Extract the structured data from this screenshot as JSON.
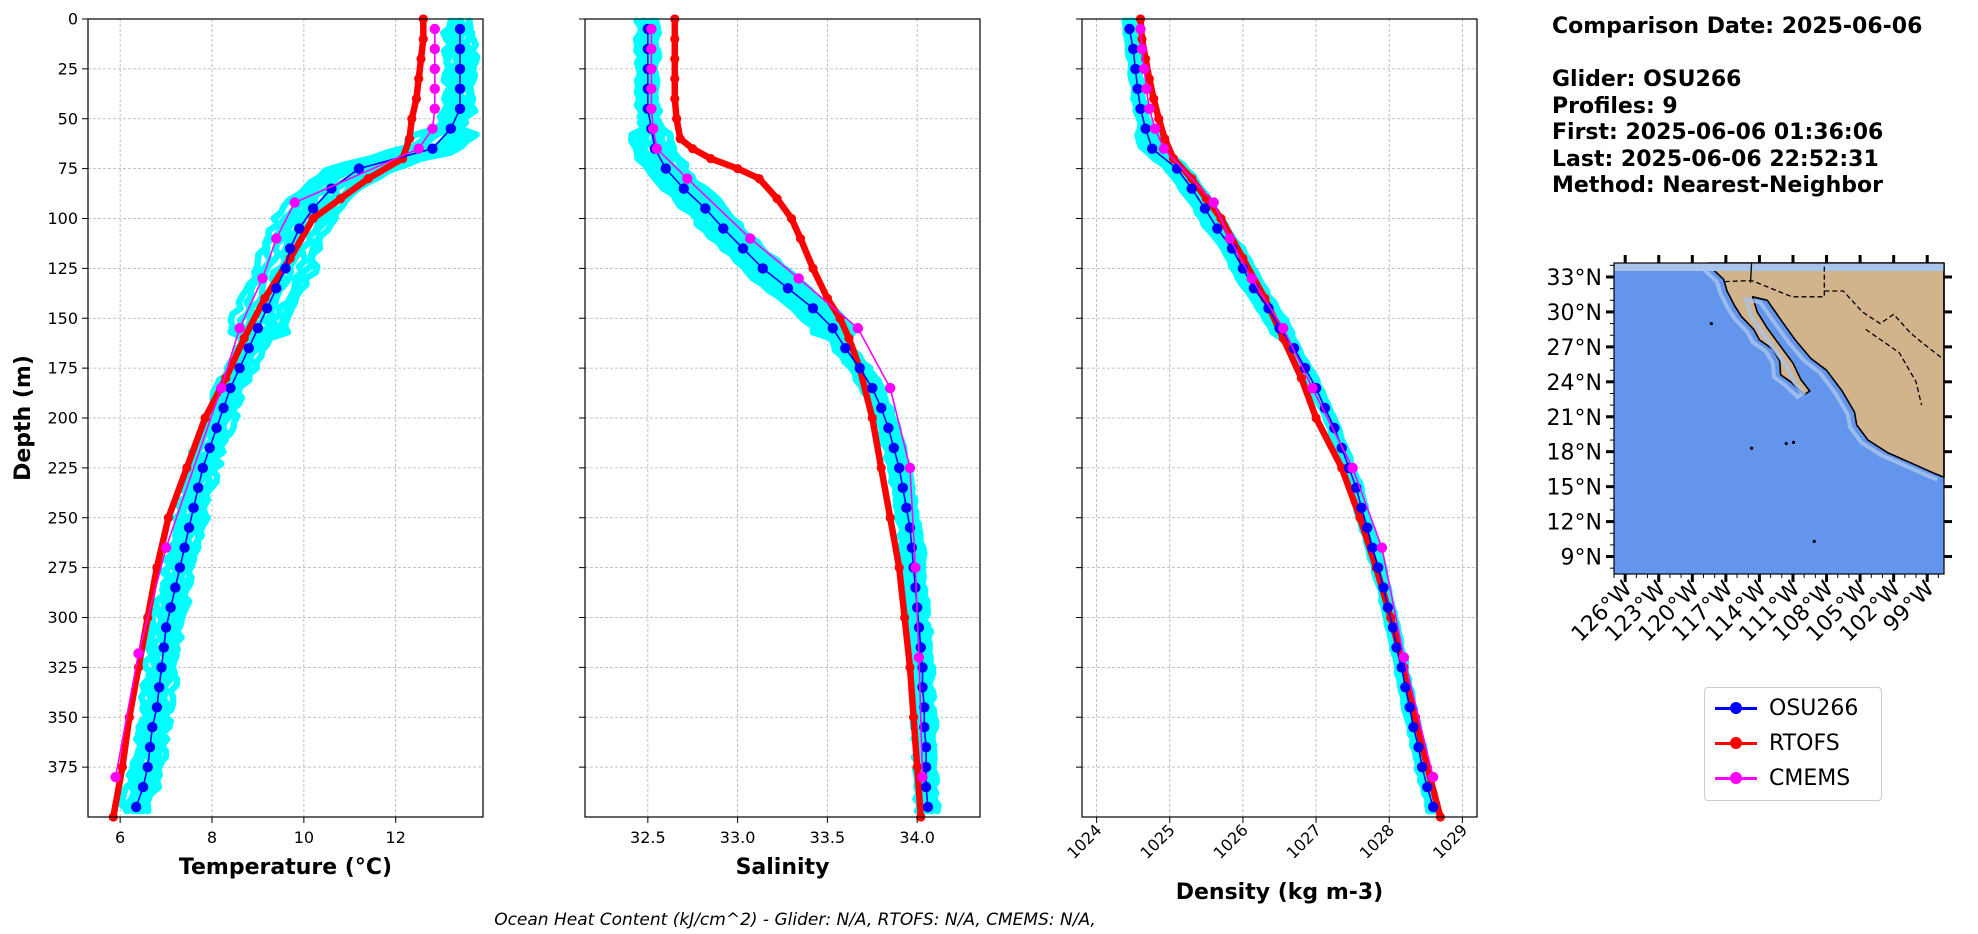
{
  "chart_data": [
    {
      "type": "line",
      "xlabel": "Temperature (°C)",
      "ylabel": "Depth (m)",
      "xlim": [
        5.3,
        13.9
      ],
      "ylim": [
        400,
        0
      ],
      "xticks": [
        "6",
        "8",
        "10",
        "12"
      ],
      "yticks": [
        "0",
        "25",
        "50",
        "75",
        "100",
        "125",
        "150",
        "175",
        "200",
        "225",
        "250",
        "275",
        "300",
        "325",
        "350",
        "375"
      ],
      "grid": true,
      "series": [
        {
          "name": "OSU266",
          "color": "#0000ff",
          "depth": [
            5,
            15,
            25,
            35,
            45,
            55,
            65,
            75,
            85,
            95,
            105,
            115,
            125,
            135,
            145,
            155,
            165,
            175,
            185,
            195,
            205,
            215,
            225,
            235,
            245,
            255,
            265,
            275,
            285,
            295,
            305,
            315,
            325,
            335,
            345,
            355,
            365,
            375,
            385,
            395
          ],
          "values": [
            13.4,
            13.4,
            13.4,
            13.4,
            13.4,
            13.2,
            12.8,
            11.2,
            10.6,
            10.2,
            9.9,
            9.7,
            9.6,
            9.4,
            9.2,
            9.0,
            8.8,
            8.6,
            8.4,
            8.25,
            8.1,
            7.95,
            7.8,
            7.7,
            7.6,
            7.5,
            7.4,
            7.3,
            7.2,
            7.1,
            7.0,
            6.95,
            6.9,
            6.85,
            6.8,
            6.7,
            6.65,
            6.6,
            6.5,
            6.35
          ]
        },
        {
          "name": "RTOFS",
          "color": "#ff0000",
          "depth": [
            0,
            10,
            20,
            30,
            40,
            50,
            60,
            70,
            80,
            90,
            100,
            120,
            140,
            160,
            180,
            200,
            225,
            250,
            275,
            300,
            325,
            350,
            375,
            400
          ],
          "values": [
            12.6,
            12.6,
            12.55,
            12.5,
            12.45,
            12.35,
            12.3,
            12.15,
            11.4,
            10.8,
            10.2,
            9.7,
            9.15,
            8.7,
            8.3,
            7.85,
            7.45,
            7.05,
            6.8,
            6.6,
            6.4,
            6.2,
            6.05,
            5.85
          ]
        },
        {
          "name": "CMEMS",
          "color": "#ff00ff",
          "depth": [
            5,
            15,
            25,
            35,
            45,
            55,
            65,
            92,
            110,
            130,
            155,
            185,
            265,
            318,
            380
          ],
          "values": [
            12.85,
            12.85,
            12.85,
            12.85,
            12.85,
            12.8,
            12.5,
            9.8,
            9.4,
            9.1,
            8.6,
            8.2,
            7.0,
            6.4,
            5.9
          ]
        }
      ]
    },
    {
      "type": "line",
      "xlabel": "Salinity",
      "ylabel": "",
      "xlim": [
        32.15,
        34.35
      ],
      "ylim": [
        400,
        0
      ],
      "xticks": [
        "32.5",
        "33.0",
        "33.5",
        "34.0"
      ],
      "grid": true,
      "series": [
        {
          "name": "OSU266",
          "color": "#0000ff",
          "depth": [
            5,
            15,
            25,
            35,
            45,
            55,
            65,
            75,
            85,
            95,
            105,
            115,
            125,
            135,
            145,
            155,
            165,
            175,
            185,
            195,
            205,
            215,
            225,
            235,
            245,
            255,
            265,
            275,
            285,
            295,
            305,
            315,
            325,
            335,
            345,
            355,
            365,
            375,
            385,
            395
          ],
          "values": [
            32.5,
            32.5,
            32.5,
            32.5,
            32.5,
            32.52,
            32.54,
            32.6,
            32.7,
            32.82,
            32.92,
            33.03,
            33.14,
            33.28,
            33.42,
            33.53,
            33.6,
            33.68,
            33.75,
            33.8,
            33.84,
            33.87,
            33.9,
            33.92,
            33.94,
            33.96,
            33.97,
            33.98,
            33.99,
            34.0,
            34.01,
            34.02,
            34.03,
            34.03,
            34.04,
            34.04,
            34.05,
            34.05,
            34.05,
            34.06
          ]
        },
        {
          "name": "RTOFS",
          "color": "#ff0000",
          "depth": [
            0,
            10,
            20,
            30,
            40,
            50,
            60,
            65,
            70,
            75,
            80,
            90,
            100,
            110,
            125,
            140,
            150,
            160,
            175,
            200,
            225,
            250,
            275,
            300,
            325,
            350,
            375,
            400
          ],
          "values": [
            32.65,
            32.65,
            32.65,
            32.65,
            32.65,
            32.66,
            32.68,
            32.75,
            32.85,
            33.0,
            33.12,
            33.22,
            33.3,
            33.35,
            33.42,
            33.5,
            33.57,
            33.62,
            33.68,
            33.75,
            33.8,
            33.85,
            33.9,
            33.93,
            33.96,
            33.98,
            34.0,
            34.02
          ]
        },
        {
          "name": "CMEMS",
          "color": "#ff00ff",
          "depth": [
            5,
            15,
            25,
            35,
            45,
            55,
            65,
            80,
            110,
            130,
            155,
            185,
            225,
            275,
            320,
            380
          ],
          "values": [
            32.52,
            32.52,
            32.52,
            32.52,
            32.52,
            32.53,
            32.55,
            32.72,
            33.07,
            33.34,
            33.67,
            33.85,
            33.96,
            33.99,
            34.01,
            34.03
          ]
        }
      ]
    },
    {
      "type": "line",
      "xlabel": "Density (kg m-3)",
      "ylabel": "",
      "xlim": [
        1023.8,
        1029.2
      ],
      "ylim": [
        400,
        0
      ],
      "xticks": [
        "1024",
        "1025",
        "1026",
        "1027",
        "1028",
        "1029"
      ],
      "grid": true,
      "series": [
        {
          "name": "OSU266",
          "color": "#0000ff",
          "depth": [
            5,
            15,
            25,
            35,
            45,
            55,
            65,
            75,
            85,
            95,
            105,
            115,
            125,
            135,
            145,
            155,
            165,
            175,
            185,
            195,
            205,
            215,
            225,
            235,
            245,
            255,
            265,
            275,
            285,
            295,
            305,
            315,
            325,
            335,
            345,
            355,
            365,
            375,
            385,
            395
          ],
          "values": [
            1024.45,
            1024.5,
            1024.53,
            1024.56,
            1024.6,
            1024.67,
            1024.76,
            1025.1,
            1025.3,
            1025.48,
            1025.65,
            1025.85,
            1026.0,
            1026.15,
            1026.35,
            1026.5,
            1026.7,
            1026.85,
            1027.0,
            1027.12,
            1027.25,
            1027.35,
            1027.45,
            1027.55,
            1027.62,
            1027.7,
            1027.77,
            1027.85,
            1027.92,
            1027.98,
            1028.05,
            1028.1,
            1028.17,
            1028.22,
            1028.28,
            1028.33,
            1028.4,
            1028.45,
            1028.52,
            1028.6
          ]
        },
        {
          "name": "RTOFS",
          "color": "#ff0000",
          "depth": [
            0,
            10,
            20,
            30,
            40,
            50,
            60,
            70,
            80,
            90,
            100,
            120,
            140,
            160,
            180,
            200,
            225,
            250,
            275,
            300,
            325,
            350,
            375,
            400
          ],
          "values": [
            1024.6,
            1024.62,
            1024.67,
            1024.72,
            1024.78,
            1024.85,
            1024.93,
            1025.05,
            1025.3,
            1025.5,
            1025.7,
            1026.0,
            1026.3,
            1026.55,
            1026.8,
            1027.0,
            1027.35,
            1027.6,
            1027.82,
            1028.02,
            1028.2,
            1028.36,
            1028.52,
            1028.7
          ]
        },
        {
          "name": "CMEMS",
          "color": "#ff00ff",
          "depth": [
            5,
            15,
            25,
            35,
            45,
            55,
            65,
            92,
            110,
            130,
            155,
            185,
            225,
            265,
            320,
            380
          ],
          "values": [
            1024.6,
            1024.62,
            1024.65,
            1024.68,
            1024.72,
            1024.8,
            1024.92,
            1025.6,
            1025.82,
            1026.12,
            1026.55,
            1026.95,
            1027.5,
            1027.9,
            1028.2,
            1028.6
          ]
        }
      ]
    }
  ],
  "info": {
    "comparison_date": "Comparison Date: 2025-06-06",
    "glider": "Glider: OSU266",
    "profiles": "Profiles: 9",
    "first": "First: 2025-06-06 01:36:06",
    "last": "Last: 2025-06-06 22:52:31",
    "method": "Method: Nearest-Neighbor"
  },
  "map": {
    "lat_ticks": [
      "33°N",
      "30°N",
      "27°N",
      "24°N",
      "21°N",
      "18°N",
      "15°N",
      "12°N",
      "9°N"
    ],
    "lon_ticks": [
      "126°W",
      "123°W",
      "120°W",
      "117°W",
      "114°W",
      "111°W",
      "108°W",
      "105°W",
      "102°W",
      "99°W"
    ],
    "ocean_color": "#6495ed",
    "land_color": "#d2b48c",
    "shelf_color": "#a9c4eb"
  },
  "legend": {
    "items": [
      {
        "label": "OSU266",
        "color": "#0000ff"
      },
      {
        "label": "RTOFS",
        "color": "#ff0000"
      },
      {
        "label": "CMEMS",
        "color": "#ff00ff"
      }
    ]
  },
  "footnote": "Ocean Heat Content (kJ/cm^2) - Glider: N/A,  RTOFS: N/A,  CMEMS: N/A,"
}
